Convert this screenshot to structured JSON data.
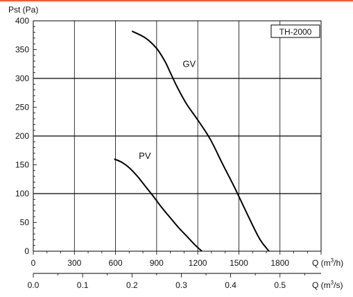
{
  "accent_color": "#e8603c",
  "chart_data": {
    "type": "line",
    "title": "",
    "ylabel": "Pst (Pa)",
    "xlabel": "Q (m³/h)",
    "x2label": "Q (m³/s)",
    "ylim": [
      0,
      400
    ],
    "xlim": [
      0,
      2100
    ],
    "x2lim": [
      0.0,
      0.5833
    ],
    "yticks": [
      "0",
      "50",
      "100",
      "150",
      "200",
      "250",
      "300",
      "350",
      "400"
    ],
    "xticks": [
      "0",
      "300",
      "600",
      "900",
      "1200",
      "1500",
      "1800"
    ],
    "x2ticks": [
      "0.0",
      "0.1",
      "0.2",
      "0.3",
      "0.4",
      "0.5"
    ],
    "major_gridlines_y": [
      100,
      200,
      300
    ],
    "grid": true,
    "legend_box": "TH-2000",
    "series": [
      {
        "name": "GV",
        "color": "#000000",
        "x": [
          720,
          820,
          900,
          960,
          1000,
          1050,
          1120,
          1200,
          1290,
          1380,
          1470,
          1560,
          1650,
          1720
        ],
        "values": [
          382,
          370,
          352,
          330,
          310,
          285,
          255,
          228,
          195,
          152,
          110,
          65,
          22,
          0
        ]
      },
      {
        "name": "PV",
        "color": "#000000",
        "x": [
          590,
          640,
          700,
          760,
          820,
          880,
          940,
          1000,
          1060,
          1120,
          1180,
          1230
        ],
        "values": [
          160,
          155,
          145,
          130,
          112,
          94,
          75,
          58,
          41,
          26,
          11,
          0
        ]
      }
    ],
    "annotations": [
      {
        "text": "GV",
        "x": 1090,
        "y": 320
      },
      {
        "text": "PV",
        "x": 770,
        "y": 160
      }
    ]
  }
}
